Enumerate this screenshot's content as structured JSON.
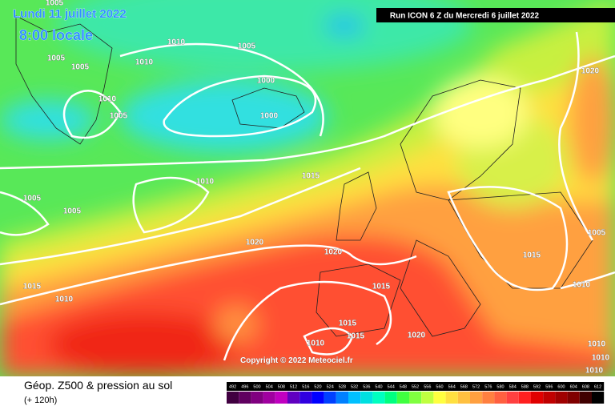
{
  "header": {
    "date": "Lundi 11 juillet 2022",
    "time": "8:00 locale",
    "run": "Run ICON 6 Z du Mercredi 6 juillet 2022"
  },
  "copyright": "Copyright © 2022 Meteociel.fr",
  "footer": {
    "title": "Géop. Z500 & pression au sol",
    "lead": "(+ 120h)"
  },
  "isobar_labels": [
    "1005",
    "1010",
    "1005",
    "1005",
    "1010",
    "1005",
    "1000",
    "1010",
    "1005",
    "1000",
    "1020",
    "1015",
    "1010",
    "1005",
    "1005",
    "1005",
    "1020",
    "1020",
    "1015",
    "1015",
    "1015",
    "1010",
    "1010",
    "1015",
    "1015",
    "1020",
    "1010",
    "1010",
    "1010",
    "1010"
  ],
  "scale": [
    {
      "value": 492,
      "color": "#400040"
    },
    {
      "value": 496,
      "color": "#600060"
    },
    {
      "value": 500,
      "color": "#800080"
    },
    {
      "value": 504,
      "color": "#a000a0"
    },
    {
      "value": 508,
      "color": "#c000c0"
    },
    {
      "value": 512,
      "color": "#6000c0"
    },
    {
      "value": 516,
      "color": "#3000e0"
    },
    {
      "value": 520,
      "color": "#0000ff"
    },
    {
      "value": 524,
      "color": "#0040ff"
    },
    {
      "value": 528,
      "color": "#0080ff"
    },
    {
      "value": 532,
      "color": "#00c0ff"
    },
    {
      "value": 536,
      "color": "#00e0e0"
    },
    {
      "value": 540,
      "color": "#00ffc0"
    },
    {
      "value": 544,
      "color": "#00ff80"
    },
    {
      "value": 548,
      "color": "#40ff40"
    },
    {
      "value": 552,
      "color": "#80ff40"
    },
    {
      "value": 556,
      "color": "#c0ff40"
    },
    {
      "value": 560,
      "color": "#ffff40"
    },
    {
      "value": 564,
      "color": "#ffe040"
    },
    {
      "value": 568,
      "color": "#ffc040"
    },
    {
      "value": 572,
      "color": "#ffa040"
    },
    {
      "value": 576,
      "color": "#ff8040"
    },
    {
      "value": 580,
      "color": "#ff6040"
    },
    {
      "value": 584,
      "color": "#ff4040"
    },
    {
      "value": 588,
      "color": "#ff2020"
    },
    {
      "value": 592,
      "color": "#e00000"
    },
    {
      "value": 596,
      "color": "#c00000"
    },
    {
      "value": 600,
      "color": "#a00000"
    },
    {
      "value": 604,
      "color": "#800000"
    },
    {
      "value": 608,
      "color": "#400000"
    },
    {
      "value": 612,
      "color": "#000000"
    }
  ]
}
